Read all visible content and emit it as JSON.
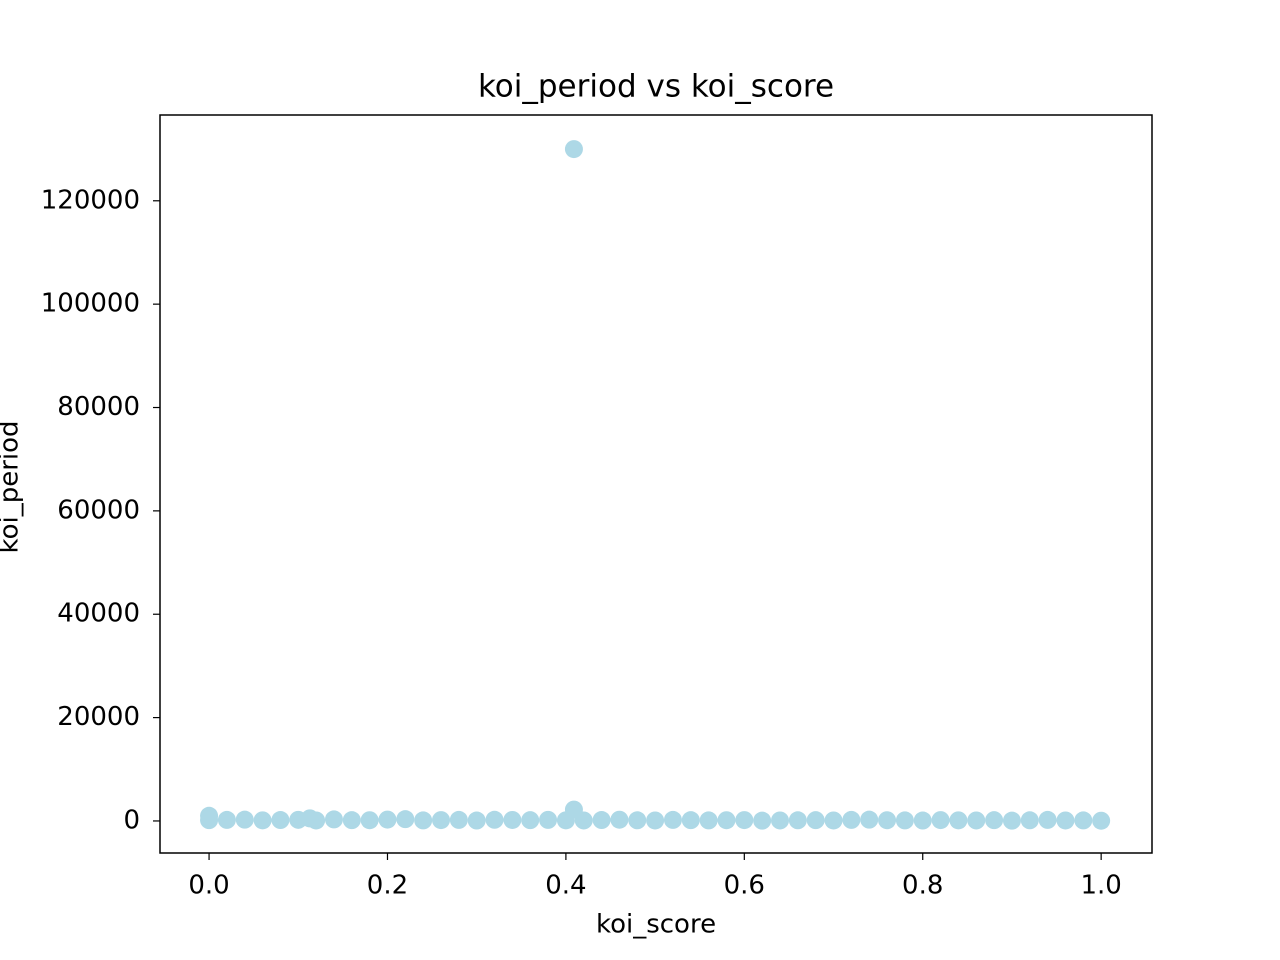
{
  "chart_data": {
    "type": "scatter",
    "title": "koi_period vs koi_score",
    "x_label": "koi_score",
    "y_label": "koi_period",
    "color": "#add8e6",
    "x": [
      0.0,
      0.02,
      0.04,
      0.06,
      0.08,
      0.1,
      0.12,
      0.14,
      0.16,
      0.18,
      0.2,
      0.22,
      0.24,
      0.26,
      0.28,
      0.3,
      0.32,
      0.34,
      0.36,
      0.38,
      0.4,
      0.42,
      0.44,
      0.46,
      0.48,
      0.5,
      0.52,
      0.54,
      0.56,
      0.58,
      0.6,
      0.62,
      0.64,
      0.66,
      0.68,
      0.7,
      0.72,
      0.74,
      0.76,
      0.78,
      0.8,
      0.82,
      0.84,
      0.86,
      0.88,
      0.9,
      0.92,
      0.94,
      0.96,
      0.98,
      1.0,
      0.0,
      0.113,
      0.409,
      0.409
    ],
    "values": [
      150,
      200,
      250,
      120,
      180,
      220,
      90,
      300,
      160,
      140,
      260,
      350,
      110,
      170,
      200,
      80,
      230,
      190,
      150,
      210,
      120,
      100,
      180,
      240,
      130,
      90,
      200,
      160,
      110,
      140,
      170,
      60,
      100,
      130,
      150,
      90,
      200,
      250,
      140,
      110,
      80,
      170,
      120,
      100,
      150,
      60,
      130,
      200,
      90,
      110,
      50,
      1000,
      500,
      2200,
      130000
    ],
    "xlim": [
      -0.055,
      1.057
    ],
    "ylim": [
      -6200,
      136600
    ],
    "xticks": [
      {
        "value": 0,
        "label": "0.0"
      },
      0.2,
      0.4,
      0.6,
      0.8,
      {
        "value": 1,
        "label": "1.0"
      }
    ],
    "yticks": [
      0,
      20000,
      40000,
      60000,
      80000,
      100000,
      120000
    ]
  }
}
